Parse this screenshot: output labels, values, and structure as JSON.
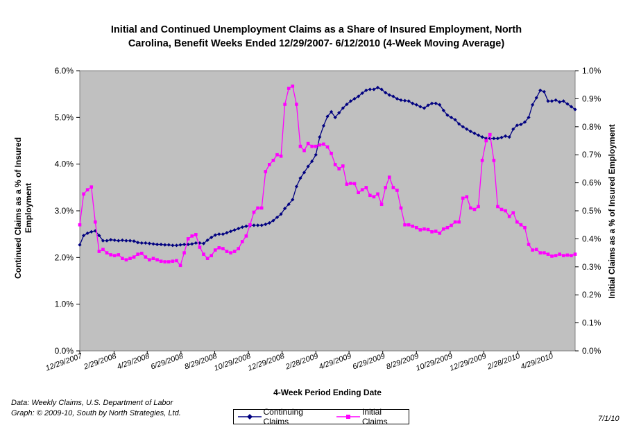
{
  "chart_data": {
    "type": "line",
    "title": "Initial and Continued Unemployment Claims as a Share of Insured Employment, North Carolina, Benefit Weeks Ended 12/29/2007- 6/12/2010 (4-Week Moving Average)",
    "title_lines": [
      "Initial and Continued Unemployment Claims as a Share of Insured Employment, North",
      "Carolina, Benefit Weeks Ended 12/29/2007- 6/12/2010 (4-Week Moving Average)"
    ],
    "xlabel": "4-Week Period Ending Date",
    "ylabel_left_lines": [
      "Continued Claims as a % of Insured",
      "Employment"
    ],
    "ylabel_right": "Initial Claims as a % of Insured Employment",
    "x_tick_labels": [
      "12/29/2007",
      "2/29/2008",
      "4/29/2008",
      "6/29/2008",
      "8/29/2008",
      "10/29/2008",
      "12/29/2008",
      "2/28/2009",
      "4/29/2009",
      "6/29/2009",
      "8/29/2009",
      "10/29/2009",
      "12/29/2009",
      "2/28/2010",
      "4/29/2010"
    ],
    "y_left_ticks": [
      "0.0%",
      "1.0%",
      "2.0%",
      "3.0%",
      "4.0%",
      "5.0%",
      "6.0%"
    ],
    "y_right_ticks": [
      "0.0%",
      "0.1%",
      "0.2%",
      "0.3%",
      "0.4%",
      "0.5%",
      "0.6%",
      "0.7%",
      "0.8%",
      "0.9%",
      "1.0%"
    ],
    "ylim_left": [
      0,
      6
    ],
    "ylim_right": [
      0,
      1
    ],
    "x_start": "12/29/2007",
    "x_end": "6/12/2010",
    "week_count": 129,
    "grid": false,
    "plot_background": "#c0c0c0",
    "series": [
      {
        "name": "Continuing Claims",
        "axis": "left",
        "color": "#000080",
        "marker": "diamond",
        "values": [
          2.27,
          2.47,
          2.52,
          2.55,
          2.57,
          2.47,
          2.36,
          2.36,
          2.38,
          2.37,
          2.36,
          2.37,
          2.36,
          2.36,
          2.35,
          2.32,
          2.31,
          2.31,
          2.3,
          2.29,
          2.28,
          2.28,
          2.27,
          2.27,
          2.26,
          2.26,
          2.27,
          2.28,
          2.28,
          2.29,
          2.31,
          2.31,
          2.3,
          2.37,
          2.43,
          2.48,
          2.5,
          2.5,
          2.53,
          2.56,
          2.59,
          2.62,
          2.65,
          2.67,
          2.68,
          2.69,
          2.69,
          2.69,
          2.71,
          2.74,
          2.79,
          2.86,
          2.93,
          3.05,
          3.14,
          3.24,
          3.52,
          3.7,
          3.82,
          3.95,
          4.06,
          4.2,
          4.58,
          4.82,
          5.02,
          5.12,
          5.0,
          5.1,
          5.2,
          5.28,
          5.35,
          5.4,
          5.45,
          5.52,
          5.58,
          5.6,
          5.6,
          5.64,
          5.6,
          5.53,
          5.48,
          5.45,
          5.4,
          5.37,
          5.36,
          5.35,
          5.3,
          5.27,
          5.23,
          5.2,
          5.26,
          5.3,
          5.3,
          5.27,
          5.15,
          5.05,
          5.0,
          4.95,
          4.86,
          4.8,
          4.75,
          4.7,
          4.66,
          4.62,
          4.58,
          4.55,
          4.55,
          4.55,
          4.55,
          4.57,
          4.6,
          4.58,
          4.75,
          4.83,
          4.85,
          4.9,
          5.0,
          5.27,
          5.42,
          5.58,
          5.55,
          5.35,
          5.35,
          5.37,
          5.33,
          5.35,
          5.29,
          5.23,
          5.17
        ]
      },
      {
        "name": "Initial Claims",
        "axis": "right",
        "color": "#ff00ff",
        "marker": "square",
        "values": [
          0.45,
          0.56,
          0.575,
          0.585,
          0.46,
          0.355,
          0.362,
          0.35,
          0.343,
          0.34,
          0.343,
          0.33,
          0.325,
          0.33,
          0.335,
          0.345,
          0.348,
          0.335,
          0.325,
          0.33,
          0.325,
          0.32,
          0.318,
          0.318,
          0.32,
          0.322,
          0.305,
          0.35,
          0.4,
          0.41,
          0.415,
          0.37,
          0.345,
          0.33,
          0.34,
          0.36,
          0.368,
          0.365,
          0.355,
          0.35,
          0.355,
          0.365,
          0.39,
          0.41,
          0.45,
          0.495,
          0.51,
          0.51,
          0.64,
          0.665,
          0.68,
          0.7,
          0.695,
          0.88,
          0.937,
          0.945,
          0.88,
          0.73,
          0.715,
          0.74,
          0.73,
          0.73,
          0.735,
          0.738,
          0.728,
          0.705,
          0.665,
          0.65,
          0.66,
          0.595,
          0.598,
          0.597,
          0.565,
          0.575,
          0.583,
          0.555,
          0.55,
          0.56,
          0.523,
          0.583,
          0.62,
          0.583,
          0.573,
          0.51,
          0.45,
          0.45,
          0.445,
          0.44,
          0.432,
          0.435,
          0.433,
          0.425,
          0.427,
          0.42,
          0.435,
          0.44,
          0.448,
          0.46,
          0.46,
          0.545,
          0.55,
          0.51,
          0.505,
          0.515,
          0.68,
          0.75,
          0.772,
          0.68,
          0.515,
          0.505,
          0.5,
          0.48,
          0.493,
          0.46,
          0.45,
          0.44,
          0.38,
          0.36,
          0.362,
          0.35,
          0.35,
          0.345,
          0.338,
          0.34,
          0.345,
          0.34,
          0.342,
          0.34,
          0.345
        ]
      }
    ]
  },
  "notes": {
    "source_line1": "Data:  Weekly Claims, U.S. Department of Labor",
    "source_line2": "Graph: © 2009-10, South by North Strategies, Ltd.",
    "date": "7/1/10"
  }
}
